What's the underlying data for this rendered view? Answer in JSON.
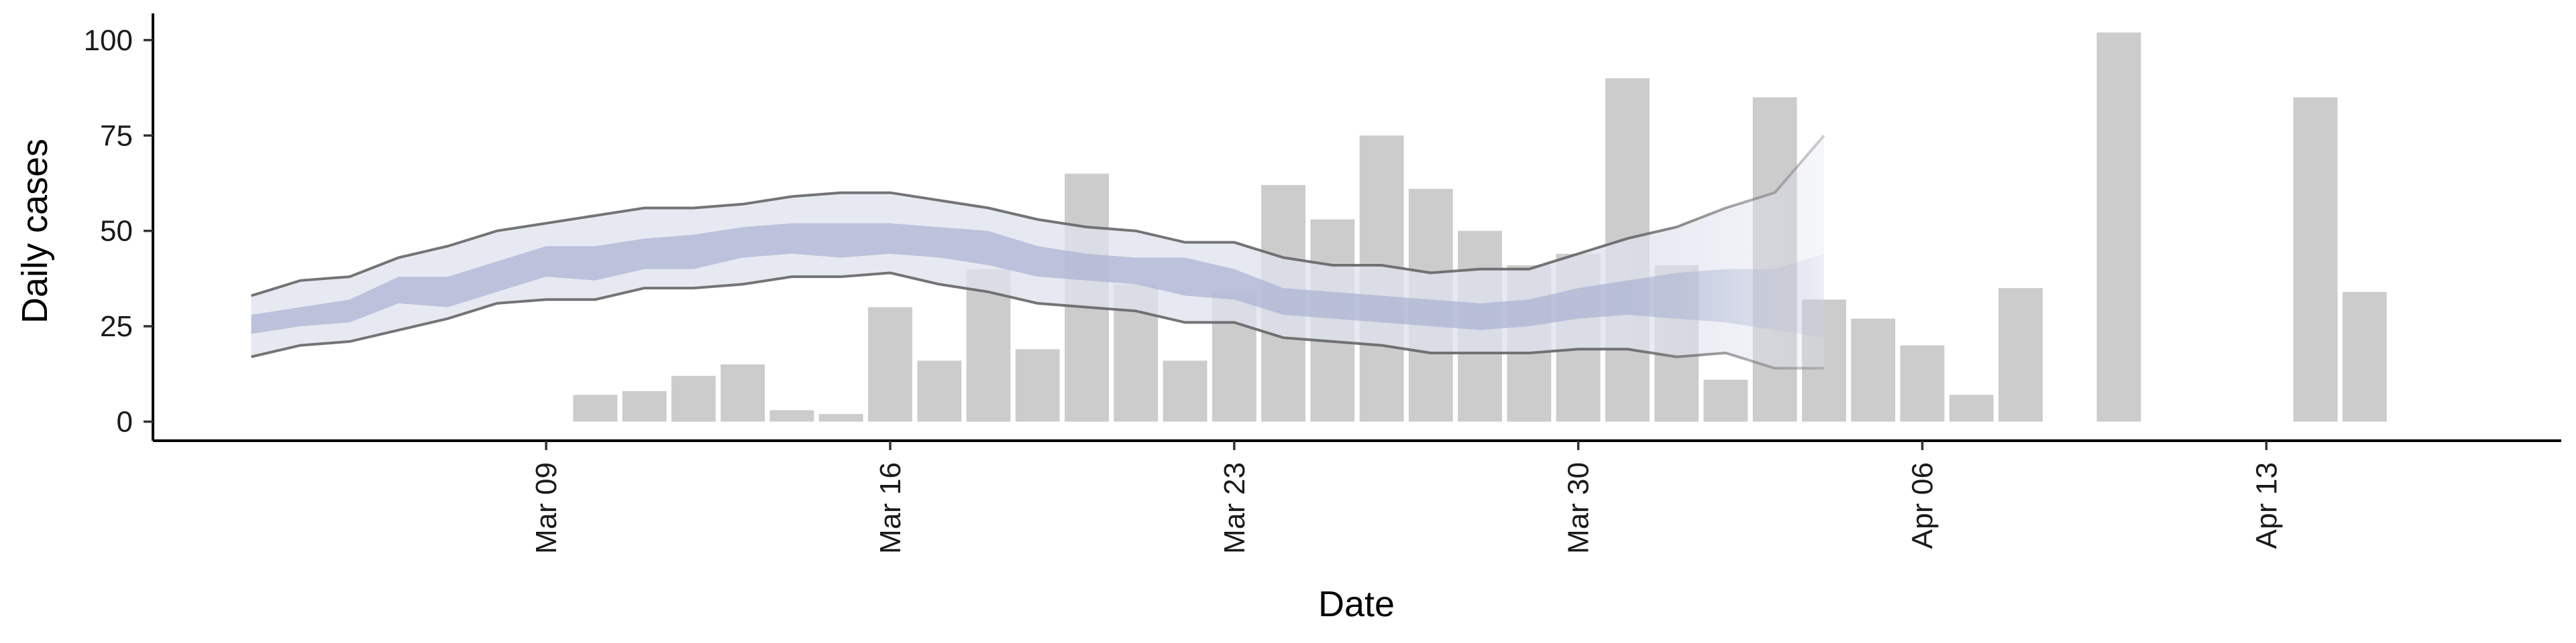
{
  "chart_data": {
    "type": "bar",
    "title": "",
    "xlabel": "Date",
    "ylabel": "Daily cases",
    "x_axis": {
      "type": "date",
      "range": [
        "2020-03-01",
        "2020-04-19"
      ],
      "ticks": [
        {
          "date": "2020-03-09",
          "label": "Mar 09"
        },
        {
          "date": "2020-03-16",
          "label": "Mar 16"
        },
        {
          "date": "2020-03-23",
          "label": "Mar 23"
        },
        {
          "date": "2020-03-30",
          "label": "Mar 30"
        },
        {
          "date": "2020-04-06",
          "label": "Apr 06"
        },
        {
          "date": "2020-04-13",
          "label": "Apr 13"
        }
      ]
    },
    "y_axis": {
      "range": [
        -5,
        107
      ],
      "ticks": [
        0,
        25,
        50,
        75,
        100
      ]
    },
    "grid": false,
    "legend": "none",
    "bars": {
      "name": "",
      "color": "#cccccc",
      "points": [
        {
          "date": "2020-03-10",
          "value": 7
        },
        {
          "date": "2020-03-11",
          "value": 8
        },
        {
          "date": "2020-03-12",
          "value": 12
        },
        {
          "date": "2020-03-13",
          "value": 15
        },
        {
          "date": "2020-03-14",
          "value": 3
        },
        {
          "date": "2020-03-15",
          "value": 2
        },
        {
          "date": "2020-03-16",
          "value": 30
        },
        {
          "date": "2020-03-17",
          "value": 16
        },
        {
          "date": "2020-03-18",
          "value": 40
        },
        {
          "date": "2020-03-19",
          "value": 19
        },
        {
          "date": "2020-03-20",
          "value": 65
        },
        {
          "date": "2020-03-21",
          "value": 36
        },
        {
          "date": "2020-03-22",
          "value": 16
        },
        {
          "date": "2020-03-23",
          "value": 34
        },
        {
          "date": "2020-03-24",
          "value": 62
        },
        {
          "date": "2020-03-25",
          "value": 53
        },
        {
          "date": "2020-03-26",
          "value": 75
        },
        {
          "date": "2020-03-27",
          "value": 61
        },
        {
          "date": "2020-03-28",
          "value": 50
        },
        {
          "date": "2020-03-29",
          "value": 41
        },
        {
          "date": "2020-03-30",
          "value": 44
        },
        {
          "date": "2020-03-31",
          "value": 90
        },
        {
          "date": "2020-04-01",
          "value": 41
        },
        {
          "date": "2020-04-02",
          "value": 11
        },
        {
          "date": "2020-04-03",
          "value": 85
        },
        {
          "date": "2020-04-04",
          "value": 32
        },
        {
          "date": "2020-04-05",
          "value": 27
        },
        {
          "date": "2020-04-06",
          "value": 20
        },
        {
          "date": "2020-04-07",
          "value": 7
        },
        {
          "date": "2020-04-08",
          "value": 35
        },
        {
          "date": "2020-04-10",
          "value": 102
        },
        {
          "date": "2020-04-14",
          "value": 85
        },
        {
          "date": "2020-04-15",
          "value": 34
        }
      ]
    },
    "estimate": {
      "outer_band_color": "#dfe2ee",
      "inner_band_color": "#a9b2d1",
      "outline_color": "#666666",
      "points": [
        {
          "date": "2020-03-03",
          "lower90": 17,
          "upper90": 33,
          "lower50": 23,
          "upper50": 28
        },
        {
          "date": "2020-03-04",
          "lower90": 20,
          "upper90": 37,
          "lower50": 25,
          "upper50": 30
        },
        {
          "date": "2020-03-05",
          "lower90": 21,
          "upper90": 38,
          "lower50": 26,
          "upper50": 32
        },
        {
          "date": "2020-03-06",
          "lower90": 24,
          "upper90": 43,
          "lower50": 31,
          "upper50": 38
        },
        {
          "date": "2020-03-07",
          "lower90": 27,
          "upper90": 46,
          "lower50": 30,
          "upper50": 38
        },
        {
          "date": "2020-03-08",
          "lower90": 31,
          "upper90": 50,
          "lower50": 34,
          "upper50": 42
        },
        {
          "date": "2020-03-09",
          "lower90": 32,
          "upper90": 52,
          "lower50": 38,
          "upper50": 46
        },
        {
          "date": "2020-03-10",
          "lower90": 32,
          "upper90": 54,
          "lower50": 37,
          "upper50": 46
        },
        {
          "date": "2020-03-11",
          "lower90": 35,
          "upper90": 56,
          "lower50": 40,
          "upper50": 48
        },
        {
          "date": "2020-03-12",
          "lower90": 35,
          "upper90": 56,
          "lower50": 40,
          "upper50": 49
        },
        {
          "date": "2020-03-13",
          "lower90": 36,
          "upper90": 57,
          "lower50": 43,
          "upper50": 51
        },
        {
          "date": "2020-03-14",
          "lower90": 38,
          "upper90": 59,
          "lower50": 44,
          "upper50": 52
        },
        {
          "date": "2020-03-15",
          "lower90": 38,
          "upper90": 60,
          "lower50": 43,
          "upper50": 52
        },
        {
          "date": "2020-03-16",
          "lower90": 39,
          "upper90": 60,
          "lower50": 44,
          "upper50": 52
        },
        {
          "date": "2020-03-17",
          "lower90": 36,
          "upper90": 58,
          "lower50": 43,
          "upper50": 51
        },
        {
          "date": "2020-03-18",
          "lower90": 34,
          "upper90": 56,
          "lower50": 41,
          "upper50": 50
        },
        {
          "date": "2020-03-19",
          "lower90": 31,
          "upper90": 53,
          "lower50": 38,
          "upper50": 46
        },
        {
          "date": "2020-03-20",
          "lower90": 30,
          "upper90": 51,
          "lower50": 37,
          "upper50": 44
        },
        {
          "date": "2020-03-21",
          "lower90": 29,
          "upper90": 50,
          "lower50": 36,
          "upper50": 43
        },
        {
          "date": "2020-03-22",
          "lower90": 26,
          "upper90": 47,
          "lower50": 33,
          "upper50": 43
        },
        {
          "date": "2020-03-23",
          "lower90": 26,
          "upper90": 47,
          "lower50": 32,
          "upper50": 40
        },
        {
          "date": "2020-03-24",
          "lower90": 22,
          "upper90": 43,
          "lower50": 28,
          "upper50": 35
        },
        {
          "date": "2020-03-25",
          "lower90": 21,
          "upper90": 41,
          "lower50": 27,
          "upper50": 34
        },
        {
          "date": "2020-03-26",
          "lower90": 20,
          "upper90": 41,
          "lower50": 26,
          "upper50": 33
        },
        {
          "date": "2020-03-27",
          "lower90": 18,
          "upper90": 39,
          "lower50": 25,
          "upper50": 32
        },
        {
          "date": "2020-03-28",
          "lower90": 18,
          "upper90": 40,
          "lower50": 24,
          "upper50": 31
        },
        {
          "date": "2020-03-29",
          "lower90": 18,
          "upper90": 40,
          "lower50": 25,
          "upper50": 32
        },
        {
          "date": "2020-03-30",
          "lower90": 19,
          "upper90": 44,
          "lower50": 27,
          "upper50": 35
        },
        {
          "date": "2020-03-31",
          "lower90": 19,
          "upper90": 48,
          "lower50": 28,
          "upper50": 37
        },
        {
          "date": "2020-04-01",
          "lower90": 17,
          "upper90": 51,
          "lower50": 27,
          "upper50": 39
        },
        {
          "date": "2020-04-02",
          "lower90": 18,
          "upper90": 56,
          "lower50": 26,
          "upper50": 40
        },
        {
          "date": "2020-04-03",
          "lower90": 14,
          "upper90": 60,
          "lower50": 24,
          "upper50": 40
        },
        {
          "date": "2020-04-04",
          "lower90": 14,
          "upper90": 75,
          "lower50": 22,
          "upper50": 44
        }
      ],
      "fade_start_date": "2020-03-31"
    }
  }
}
